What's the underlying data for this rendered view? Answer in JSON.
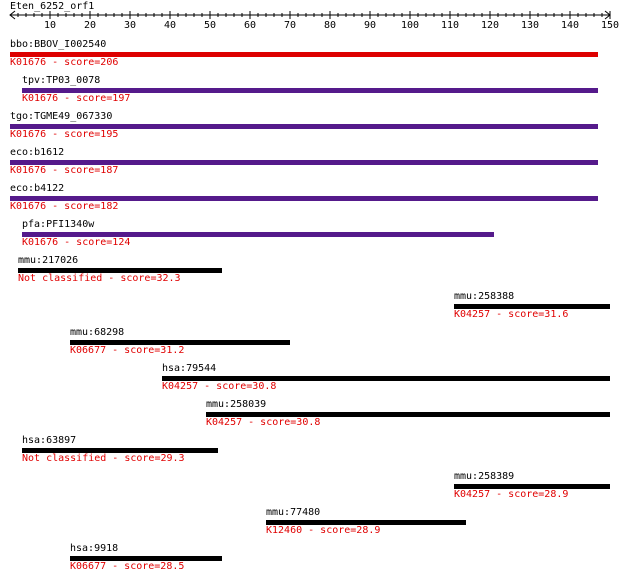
{
  "query": {
    "name": "Eten_6252_orf1",
    "length": 150
  },
  "ruler": {
    "ticks": [
      10,
      20,
      30,
      40,
      50,
      60,
      70,
      80,
      90,
      100,
      110,
      120,
      130,
      140,
      150
    ],
    "minor_step": 2
  },
  "colors": {
    "axis": "#000000",
    "score_text": "#e00000",
    "top_hit_bar": "#dd0000",
    "purple_bar": "#551a8b",
    "black_bar": "#000000"
  },
  "hits": [
    {
      "name": "bbo:BBOV_I002540",
      "score_label": "K01676 - score=206",
      "start": 1,
      "end": 147,
      "bar_color": "#dd0000"
    },
    {
      "name": "tpv:TP03_0078",
      "score_label": "K01676 - score=197",
      "start": 4,
      "end": 147,
      "bar_color": "#551a8b"
    },
    {
      "name": "tgo:TGME49_067330",
      "score_label": "K01676 - score=195",
      "start": 1,
      "end": 147,
      "bar_color": "#551a8b"
    },
    {
      "name": "eco:b1612",
      "score_label": "K01676 - score=187",
      "start": 1,
      "end": 147,
      "bar_color": "#551a8b"
    },
    {
      "name": "eco:b4122",
      "score_label": "K01676 - score=182",
      "start": 1,
      "end": 147,
      "bar_color": "#551a8b"
    },
    {
      "name": "pfa:PFI1340w",
      "score_label": "K01676 - score=124",
      "start": 4,
      "end": 121,
      "bar_color": "#551a8b"
    },
    {
      "name": "mmu:217026",
      "score_label": "Not classified - score=32.3",
      "start": 3,
      "end": 53,
      "bar_color": "#000000"
    },
    {
      "name": "mmu:258388",
      "score_label": "K04257 - score=31.6",
      "start": 112,
      "end": 150,
      "bar_color": "#000000"
    },
    {
      "name": "mmu:68298",
      "score_label": "K06677 - score=31.2",
      "start": 16,
      "end": 70,
      "bar_color": "#000000"
    },
    {
      "name": "hsa:79544",
      "score_label": "K04257 - score=30.8",
      "start": 39,
      "end": 150,
      "bar_color": "#000000"
    },
    {
      "name": "mmu:258039",
      "score_label": "K04257 - score=30.8",
      "start": 50,
      "end": 150,
      "bar_color": "#000000"
    },
    {
      "name": "hsa:63897",
      "score_label": "Not classified - score=29.3",
      "start": 4,
      "end": 52,
      "bar_color": "#000000"
    },
    {
      "name": "mmu:258389",
      "score_label": "K04257 - score=28.9",
      "start": 112,
      "end": 150,
      "bar_color": "#000000"
    },
    {
      "name": "mmu:77480",
      "score_label": "K12460 - score=28.9",
      "start": 65,
      "end": 114,
      "bar_color": "#000000"
    },
    {
      "name": "hsa:9918",
      "score_label": "K06677 - score=28.5",
      "start": 16,
      "end": 53,
      "bar_color": "#000000"
    }
  ]
}
